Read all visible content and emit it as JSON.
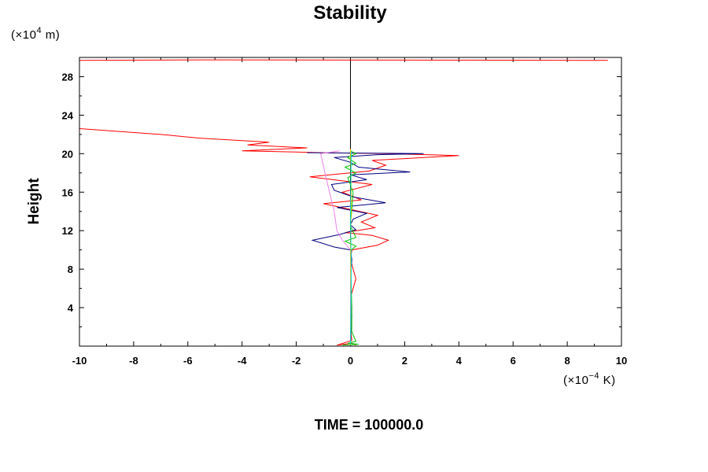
{
  "chart_data": {
    "type": "line",
    "title": "Stability",
    "ylabel": "Height",
    "y_unit_prefix": "(×10",
    "y_unit_exp": "4",
    "y_unit_suffix": " m)",
    "x_unit_prefix": "(×10",
    "x_unit_exp": "−4",
    "x_unit_suffix": " K)",
    "xlim": [
      -10,
      10
    ],
    "ylim": [
      0,
      30
    ],
    "x_ticks": [
      -10,
      -8,
      -6,
      -4,
      -2,
      0,
      2,
      4,
      6,
      8,
      10
    ],
    "y_ticks": [
      4,
      8,
      12,
      16,
      20,
      24,
      28
    ],
    "grid": false,
    "reference_line_x": 0,
    "series": [
      {
        "color": "#ff0000",
        "points": [
          [
            0.2,
            0.1
          ],
          [
            0.05,
            0.3
          ],
          [
            -0.5,
            0.1
          ],
          [
            0.05,
            0.6
          ],
          [
            0.0,
            2
          ],
          [
            0.05,
            4
          ],
          [
            0.0,
            5
          ],
          [
            0.1,
            6
          ],
          [
            0.2,
            7
          ],
          [
            0.1,
            8
          ],
          [
            0.0,
            9
          ],
          [
            0.05,
            10
          ],
          [
            1.0,
            10.5
          ],
          [
            1.4,
            11.0
          ],
          [
            0.8,
            11.5
          ],
          [
            -0.2,
            11.8
          ],
          [
            0.9,
            12.3
          ],
          [
            0.4,
            12.9
          ],
          [
            1.0,
            13.6
          ],
          [
            0.0,
            14.2
          ],
          [
            -1.0,
            14.8
          ],
          [
            0.4,
            15.2
          ],
          [
            -0.3,
            16.0
          ],
          [
            0.8,
            16.8
          ],
          [
            -1.5,
            17.6
          ],
          [
            0.7,
            18.2
          ],
          [
            1.3,
            18.8
          ],
          [
            0.8,
            19.3
          ],
          [
            4.0,
            19.8
          ],
          [
            1.3,
            20.0
          ],
          [
            -1.0,
            20.1
          ],
          [
            -4.0,
            20.3
          ],
          [
            -1.6,
            20.6
          ],
          [
            -3.8,
            20.9
          ],
          [
            -3.0,
            21.2
          ],
          [
            -5.5,
            21.6
          ],
          [
            -7.0,
            22.0
          ],
          [
            -10.0,
            22.6
          ]
        ]
      },
      {
        "color": "#ff0000",
        "points": [
          [
            -10.0,
            29.7
          ],
          [
            -5.0,
            29.75
          ],
          [
            9.5,
            29.7
          ]
        ]
      },
      {
        "color": "#000080",
        "points": [
          [
            0.0,
            0.2
          ],
          [
            0.05,
            3
          ],
          [
            0.0,
            7
          ],
          [
            0.05,
            9
          ],
          [
            0.0,
            10
          ],
          [
            -0.6,
            10.3
          ],
          [
            -1.4,
            11.0
          ],
          [
            -0.4,
            11.6
          ],
          [
            0.2,
            12.1
          ],
          [
            0.0,
            12.6
          ],
          [
            0.1,
            13.2
          ],
          [
            0.6,
            13.8
          ],
          [
            -0.5,
            14.4
          ],
          [
            1.3,
            14.9
          ],
          [
            0.1,
            15.5
          ],
          [
            -0.6,
            16.2
          ],
          [
            -0.7,
            16.8
          ],
          [
            0.6,
            17.3
          ],
          [
            0.0,
            17.8
          ],
          [
            2.2,
            18.1
          ],
          [
            0.3,
            18.6
          ],
          [
            0.0,
            19.1
          ],
          [
            -0.6,
            19.6
          ],
          [
            1.0,
            19.9
          ],
          [
            2.7,
            20.0
          ],
          [
            -1.6,
            20.1
          ]
        ]
      },
      {
        "color": "#ee82ee",
        "points": [
          [
            0.0,
            0.4
          ],
          [
            0.0,
            10.0
          ],
          [
            -0.3,
            11.0
          ],
          [
            -0.5,
            12.0
          ],
          [
            -0.6,
            14.0
          ],
          [
            -0.9,
            17.5
          ],
          [
            -1.1,
            20.0
          ],
          [
            -0.4,
            20.3
          ]
        ]
      },
      {
        "color": "#00c000",
        "points": [
          [
            -0.3,
            0.1
          ],
          [
            0.3,
            0.2
          ],
          [
            -0.1,
            0.3
          ],
          [
            0.2,
            0.5
          ],
          [
            0.05,
            1.5
          ],
          [
            0.05,
            4
          ],
          [
            0.0,
            9.9
          ],
          [
            0.2,
            10.4
          ],
          [
            -0.2,
            10.9
          ],
          [
            0.2,
            11.3
          ],
          [
            0.0,
            12.5
          ],
          [
            0.1,
            16
          ],
          [
            -0.1,
            17.5
          ],
          [
            0.2,
            18.0
          ],
          [
            -0.2,
            18.6
          ],
          [
            0.2,
            19.0
          ],
          [
            -0.1,
            19.6
          ],
          [
            0.2,
            20.0
          ],
          [
            0.0,
            20.3
          ]
        ]
      },
      {
        "color": "#ffcc00",
        "points": [
          [
            0.0,
            0.1
          ],
          [
            0.02,
            4
          ],
          [
            0.0,
            10
          ],
          [
            0.03,
            16
          ],
          [
            0.0,
            20.5
          ]
        ]
      },
      {
        "color": "#00dddd",
        "points": [
          [
            0.0,
            0.2
          ],
          [
            0.03,
            8
          ],
          [
            0.0,
            14
          ],
          [
            0.03,
            20.2
          ]
        ]
      }
    ]
  },
  "footer": {
    "time_label": "TIME = 100000.0"
  }
}
